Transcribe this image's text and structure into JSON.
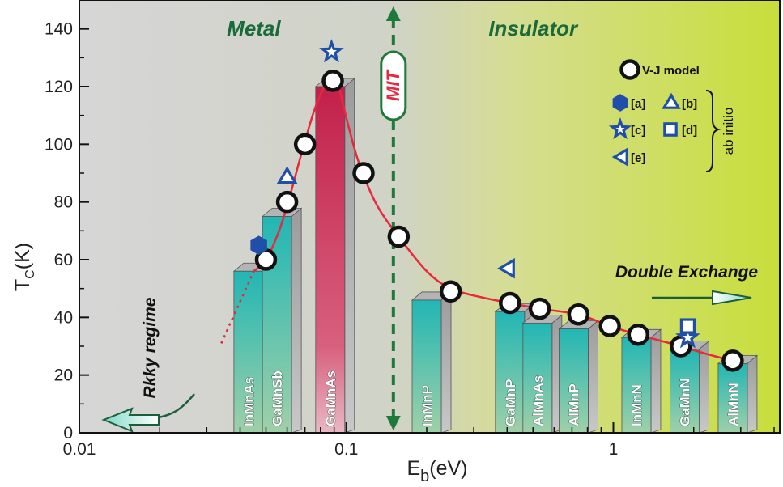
{
  "chart_data": {
    "type": "bar",
    "x_scale": "log",
    "xlabel": {
      "main": "E",
      "sub": "b",
      "unit": "(eV)"
    },
    "ylabel": {
      "main": "T",
      "sub": "C",
      "unit": "(K)"
    },
    "xlim": [
      0.01,
      4.2
    ],
    "ylim": [
      0,
      150
    ],
    "x_ticks": [
      {
        "value": 0.01,
        "label": "0.01"
      },
      {
        "value": 0.1,
        "label": "0.1"
      },
      {
        "value": 1,
        "label": "1"
      }
    ],
    "y_ticks": [
      {
        "value": 0,
        "label": "0"
      },
      {
        "value": 20,
        "label": "20"
      },
      {
        "value": 40,
        "label": "40"
      },
      {
        "value": 60,
        "label": "60"
      },
      {
        "value": 80,
        "label": "80"
      },
      {
        "value": 100,
        "label": "100"
      },
      {
        "value": 120,
        "label": "120"
      },
      {
        "value": 140,
        "label": "140"
      }
    ],
    "regions": [
      {
        "label": "Metal",
        "x_center": 0.045
      },
      {
        "label": "Insulator",
        "x_center": 0.5
      }
    ],
    "mit": {
      "label": "MIT",
      "x": 0.15
    },
    "bars": [
      {
        "label": "InMnAs",
        "x": 0.043,
        "value": 56,
        "color": "#2bb7b0"
      },
      {
        "label": "GaMnSb",
        "x": 0.055,
        "value": 75,
        "color": "#2bb7b0"
      },
      {
        "label": "GaMnAs",
        "x": 0.087,
        "value": 120,
        "color": "#c8234a"
      },
      {
        "label": "InMnP",
        "x": 0.2,
        "value": 46,
        "color": "#2bb7b0"
      },
      {
        "label": "GaMnP",
        "x": 0.41,
        "value": 42,
        "color": "#2bb7b0"
      },
      {
        "label": "AlMnAs",
        "x": 0.52,
        "value": 38,
        "color": "#2bb7b0"
      },
      {
        "label": "AlMnP",
        "x": 0.71,
        "value": 36,
        "color": "#2bb7b0"
      },
      {
        "label": "InMnN",
        "x": 1.22,
        "value": 33,
        "color": "#2bb7b0"
      },
      {
        "label": "GaMnN",
        "x": 1.85,
        "value": 29,
        "color": "#2bb7b0"
      },
      {
        "label": "AlMnN",
        "x": 2.8,
        "value": 24,
        "color": "#2bb7b0"
      }
    ],
    "vj_model": {
      "name": "V-J model",
      "points": [
        {
          "x": 0.05,
          "y": 60
        },
        {
          "x": 0.06,
          "y": 80
        },
        {
          "x": 0.07,
          "y": 100
        },
        {
          "x": 0.089,
          "y": 122
        },
        {
          "x": 0.116,
          "y": 90
        },
        {
          "x": 0.157,
          "y": 68
        },
        {
          "x": 0.246,
          "y": 49
        },
        {
          "x": 0.41,
          "y": 45
        },
        {
          "x": 0.53,
          "y": 43
        },
        {
          "x": 0.74,
          "y": 41
        },
        {
          "x": 0.97,
          "y": 37
        },
        {
          "x": 1.24,
          "y": 34
        },
        {
          "x": 1.79,
          "y": 30
        },
        {
          "x": 2.8,
          "y": 25
        }
      ]
    },
    "fit_curve": [
      {
        "x": 0.045,
        "y": 56
      },
      {
        "x": 0.05,
        "y": 60
      },
      {
        "x": 0.056,
        "y": 70
      },
      {
        "x": 0.061,
        "y": 81
      },
      {
        "x": 0.068,
        "y": 97
      },
      {
        "x": 0.076,
        "y": 112
      },
      {
        "x": 0.084,
        "y": 121
      },
      {
        "x": 0.089,
        "y": 122
      },
      {
        "x": 0.094,
        "y": 119
      },
      {
        "x": 0.102,
        "y": 106
      },
      {
        "x": 0.112,
        "y": 93
      },
      {
        "x": 0.13,
        "y": 79
      },
      {
        "x": 0.157,
        "y": 68
      },
      {
        "x": 0.2,
        "y": 56
      },
      {
        "x": 0.246,
        "y": 50
      },
      {
        "x": 0.32,
        "y": 47
      },
      {
        "x": 0.41,
        "y": 45
      },
      {
        "x": 0.53,
        "y": 43
      },
      {
        "x": 0.74,
        "y": 41
      },
      {
        "x": 0.97,
        "y": 37
      },
      {
        "x": 1.24,
        "y": 34
      },
      {
        "x": 1.79,
        "y": 30
      },
      {
        "x": 2.3,
        "y": 27
      },
      {
        "x": 2.8,
        "y": 25
      }
    ],
    "fit_dotted": [
      {
        "x": 0.034,
        "y": 31
      },
      {
        "x": 0.045,
        "y": 56
      }
    ],
    "ab_initio": {
      "label": "ab initio",
      "series": [
        {
          "name": "[a]",
          "marker": "hexagon",
          "points": [
            {
              "x": 0.047,
              "y": 65
            }
          ]
        },
        {
          "name": "[b]",
          "marker": "triangle-up",
          "points": [
            {
              "x": 0.06,
              "y": 89
            }
          ]
        },
        {
          "name": "[c]",
          "marker": "star",
          "points": [
            {
              "x": 0.088,
              "y": 132
            },
            {
              "x": 1.9,
              "y": 33
            }
          ]
        },
        {
          "name": "[d]",
          "marker": "square",
          "points": [
            {
              "x": 1.9,
              "y": 37
            }
          ]
        },
        {
          "name": "[e]",
          "marker": "triangle-left",
          "points": [
            {
              "x": 0.4,
              "y": 57
            }
          ]
        }
      ]
    },
    "annotations": {
      "rkky": "Rkky regime",
      "double_exchange": "Double Exchange"
    },
    "colors": {
      "metal_bg": "#d4d4d4",
      "insulator_bg": "#c9df3a",
      "fit_line": "#e8283b",
      "marker_blue": "#1f4fa8",
      "region_text": "#1b6b3a",
      "mit_line": "#1f7a3a"
    }
  }
}
